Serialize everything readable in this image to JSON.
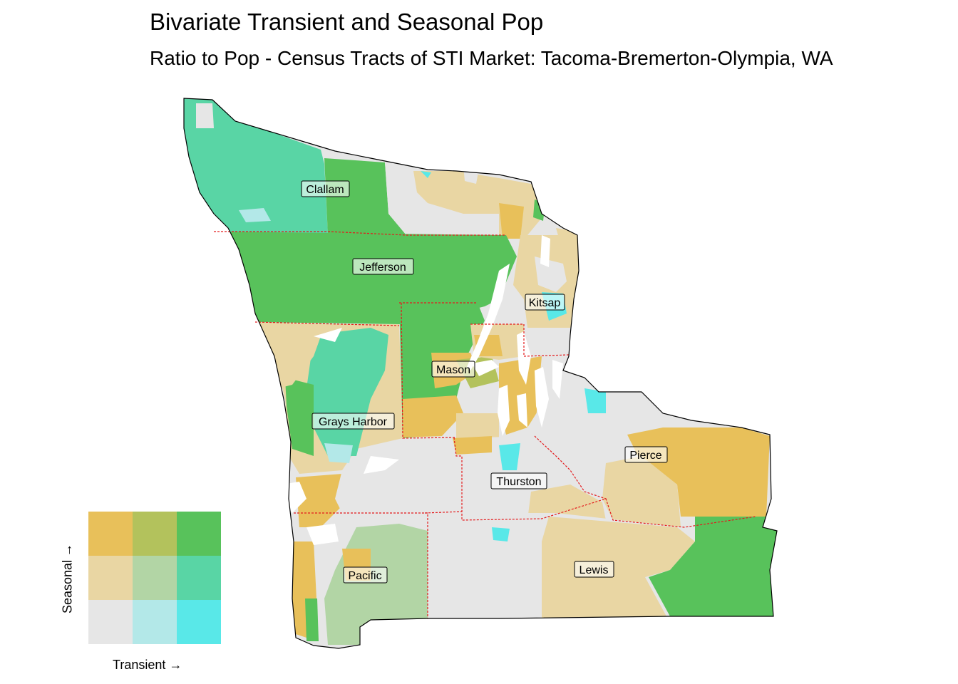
{
  "title": "Bivariate Transient and Seasonal Pop",
  "subtitle": "Ratio to Pop - Census Tracts of STI Market: Tacoma-Bremerton-Olympia, WA",
  "legend": {
    "x_label": "Transient →",
    "y_label": "Seasonal →",
    "grid_rows_top_to_bottom": [
      [
        "#e8c05a",
        "#b3c25c",
        "#58c25b"
      ],
      [
        "#e9d6a3",
        "#b2d5a5",
        "#59d5a5"
      ],
      [
        "#e6e6e6",
        "#b3e8e8",
        "#59e8e8"
      ]
    ]
  },
  "palette": {
    "low_low": "#e6e6e6",
    "low_mid": "#e9d6a3",
    "low_high": "#e8c05a",
    "mid_low": "#b3e8e8",
    "mid_mid": "#b2d5a5",
    "mid_high": "#b3c25c",
    "high_low": "#59e8e8",
    "high_mid": "#59d5a5",
    "high_high": "#58c25b",
    "county_border": "#e41a1c"
  },
  "counties": [
    {
      "name": "Clallam"
    },
    {
      "name": "Jefferson"
    },
    {
      "name": "Kitsap"
    },
    {
      "name": "Mason"
    },
    {
      "name": "Grays Harbor"
    },
    {
      "name": "Pierce"
    },
    {
      "name": "Thurston"
    },
    {
      "name": "Lewis"
    },
    {
      "name": "Pacific"
    }
  ]
}
